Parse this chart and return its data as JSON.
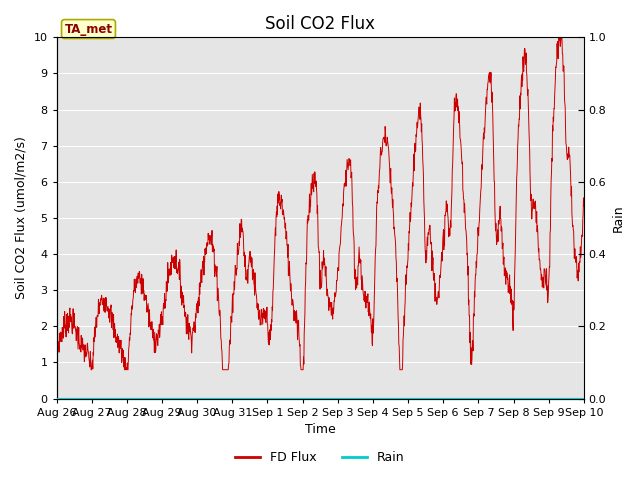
{
  "title": "Soil CO2 Flux",
  "ylabel_left": "Soil CO2 Flux (umol/m2/s)",
  "ylabel_right": "Rain",
  "xlabel": "Time",
  "ylim_left": [
    0.0,
    10.0
  ],
  "ylim_right": [
    0.0,
    1.0
  ],
  "yticks_left": [
    0.0,
    1.0,
    2.0,
    3.0,
    4.0,
    5.0,
    6.0,
    7.0,
    8.0,
    9.0,
    10.0
  ],
  "yticks_right": [
    0.0,
    0.2,
    0.4,
    0.6,
    0.8,
    1.0
  ],
  "xtick_labels": [
    "Aug 26",
    "Aug 27",
    "Aug 28",
    "Aug 29",
    "Aug 30",
    "Aug 31",
    "Sep 1",
    "Sep 2",
    "Sep 3",
    "Sep 4",
    "Sep 5",
    "Sep 6",
    "Sep 7",
    "Sep 8",
    "Sep 9",
    "Sep 10"
  ],
  "flux_color": "#cc0000",
  "rain_color": "#00cccc",
  "bg_color": "#e5e5e5",
  "grid_color": "#ffffff",
  "annotation_text": "TA_met",
  "annotation_bg": "#ffffcc",
  "annotation_border": "#aaaa00",
  "legend_entries": [
    "FD Flux",
    "Rain"
  ],
  "title_fontsize": 12,
  "axis_label_fontsize": 9,
  "tick_fontsize": 8
}
